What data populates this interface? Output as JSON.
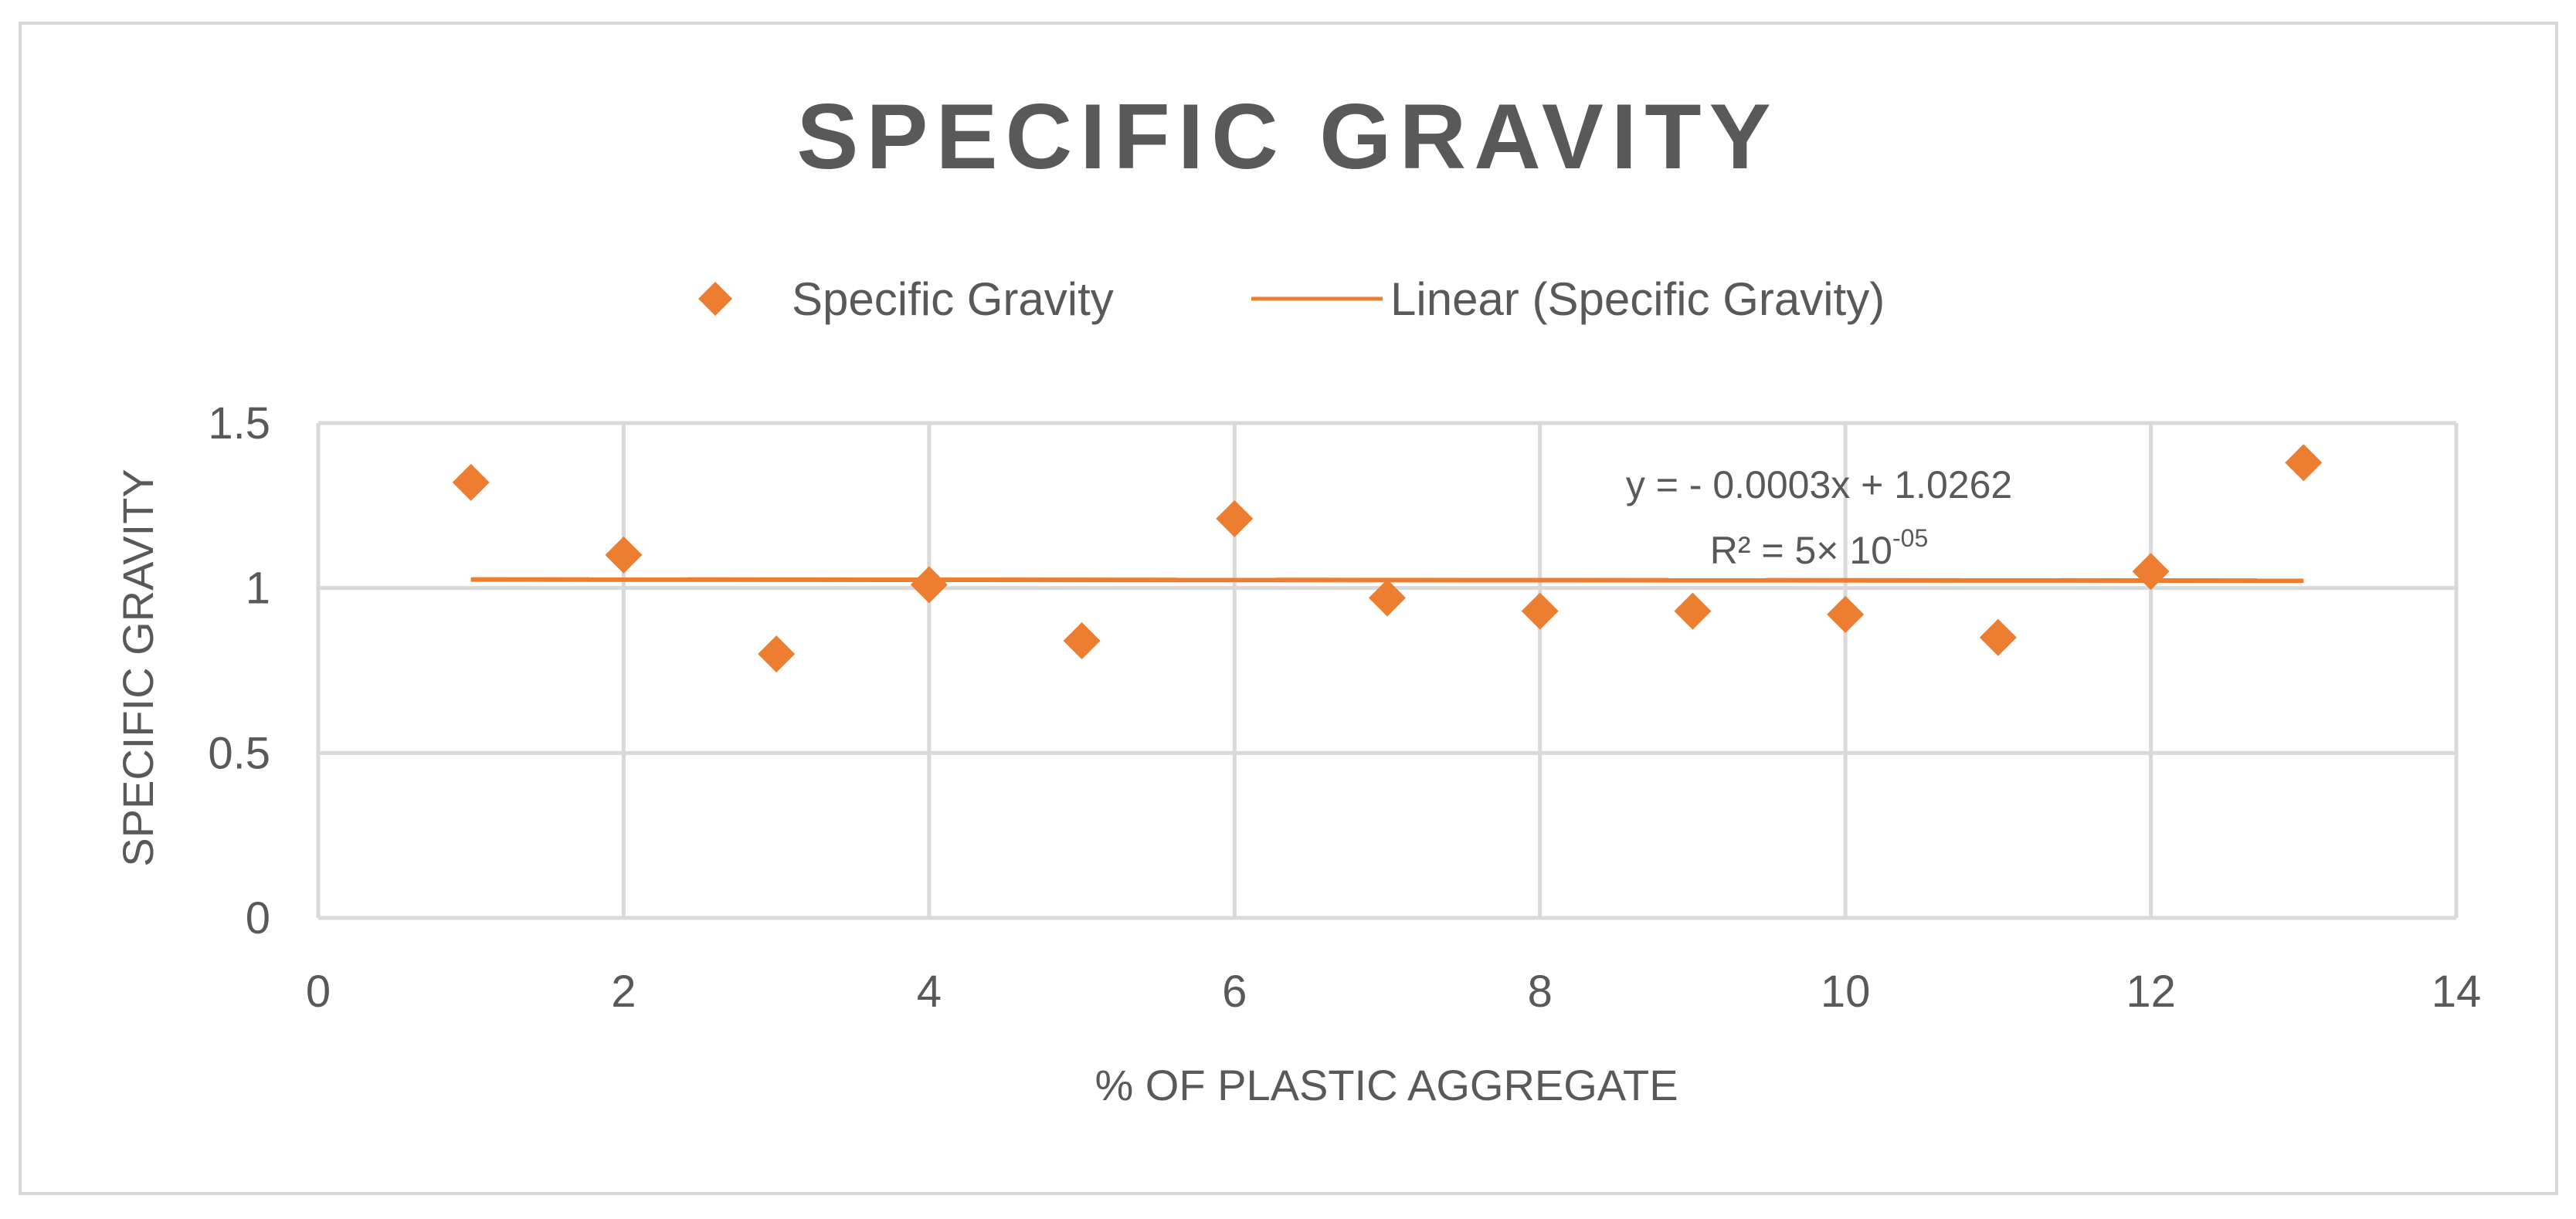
{
  "chart_data": {
    "type": "scatter",
    "title": "SPECIFIC GRAVITY",
    "xlabel": "% OF PLASTIC AGGREGATE",
    "ylabel": "SPECIFIC GRAVITY",
    "xlim": [
      0,
      14
    ],
    "ylim": [
      0,
      1.5
    ],
    "x_ticks": [
      0,
      2,
      4,
      6,
      8,
      10,
      12,
      14
    ],
    "y_ticks": [
      0,
      0.5,
      1,
      1.5
    ],
    "x_tick_labels": [
      "0",
      "2",
      "4",
      "6",
      "8",
      "10",
      "12",
      "14"
    ],
    "y_tick_labels": [
      "0",
      "0.5",
      "1",
      "1.5"
    ],
    "grid": true,
    "legend_position": "top",
    "series": [
      {
        "name": "Specific Gravity",
        "marker": "diamond",
        "color": "#ed7d31",
        "points": [
          {
            "x": 1,
            "y": 1.32
          },
          {
            "x": 2,
            "y": 1.1
          },
          {
            "x": 3,
            "y": 0.8
          },
          {
            "x": 4,
            "y": 1.01
          },
          {
            "x": 5,
            "y": 0.84
          },
          {
            "x": 6,
            "y": 1.21
          },
          {
            "x": 7,
            "y": 0.97
          },
          {
            "x": 8,
            "y": 0.93
          },
          {
            "x": 9,
            "y": 0.93
          },
          {
            "x": 10,
            "y": 0.92
          },
          {
            "x": 11,
            "y": 0.85
          },
          {
            "x": 12,
            "y": 1.05
          },
          {
            "x": 13,
            "y": 1.38
          }
        ]
      }
    ],
    "trendline": {
      "name": "Linear (Specific Gravity)",
      "type": "linear",
      "color": "#ed7d31",
      "slope": -0.0003,
      "intercept": 1.0262,
      "x_range": [
        1,
        13
      ],
      "equation_label": "y = - 0.0003x + 1.0262",
      "r2_label_base": "R² = 5× 10",
      "r2_label_exponent": "-05"
    },
    "colors": {
      "marker": "#ed7d31",
      "text": "#595959",
      "grid": "#d9d9d9"
    }
  }
}
